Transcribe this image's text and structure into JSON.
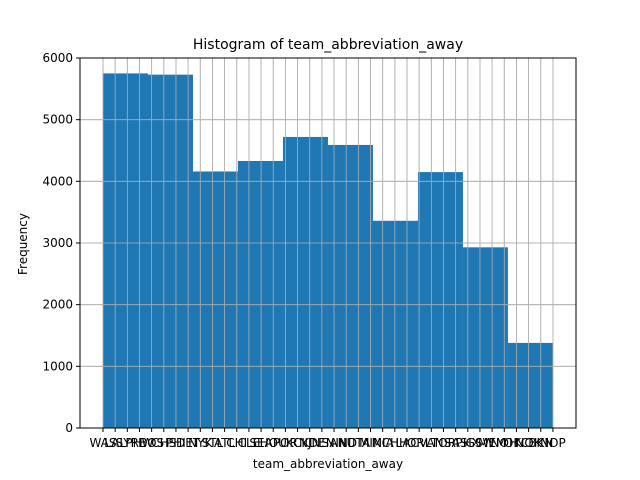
{
  "chart_data": {
    "type": "bar",
    "title": "Histogram of team_abbreviation_away",
    "xlabel": "team_abbreviation_away",
    "ylabel": "Frequency",
    "ylim": [
      0,
      6000
    ],
    "yticks": [
      0,
      1000,
      2000,
      3000,
      4000,
      5000,
      6000
    ],
    "grid": true,
    "bar_color": "#1f77b4",
    "categories": [
      "WAS",
      "LAL",
      "SYR",
      "PHW",
      "BOS",
      "CHS",
      "PHI",
      "DET",
      "NYK",
      "STL",
      "ATL",
      "CHI",
      "CLE",
      "SEA",
      "HOU",
      "POR",
      "KCK",
      "NJN",
      "DEN",
      "SAN",
      "IND",
      "UTA",
      "MIN",
      "MIA",
      "CHH",
      "LAC",
      "ORL",
      "VAN",
      "TOR",
      "SAS",
      "PHX",
      "GSW",
      "MEM",
      "NOH",
      "OKC",
      "NOK",
      "BKN",
      "NOP"
    ],
    "bins": [
      {
        "value": 5750
      },
      {
        "value": 5730
      },
      {
        "value": 4160
      },
      {
        "value": 4330
      },
      {
        "value": 4720
      },
      {
        "value": 4590
      },
      {
        "value": 3360
      },
      {
        "value": 4150
      },
      {
        "value": 2930
      },
      {
        "value": 1380
      }
    ]
  }
}
